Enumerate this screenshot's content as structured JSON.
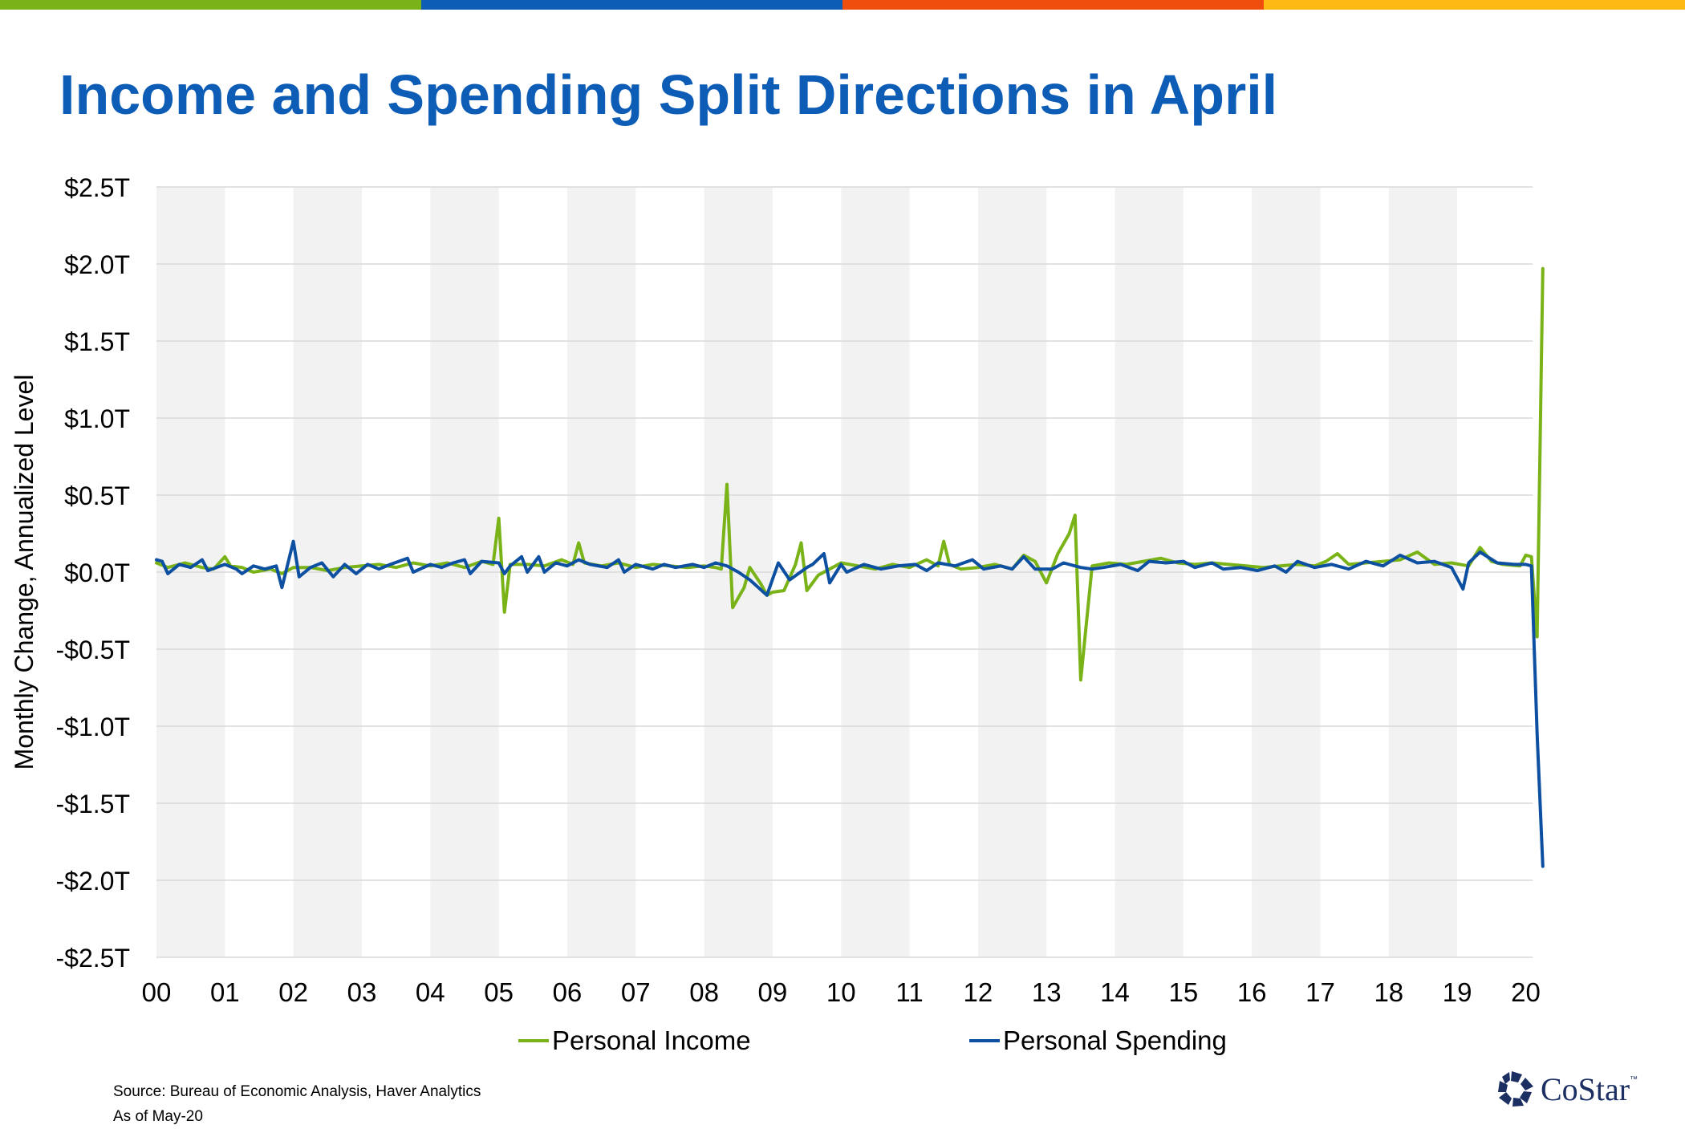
{
  "colors": {
    "top_bar": [
      "#7ab317",
      "#0d5cb6",
      "#f04e0d",
      "#fdb813"
    ],
    "income": "#7ab317",
    "spending": "#0d4fa0",
    "title": "#0d5cb6",
    "band": "#f2f2f2",
    "grid": "#d9d9d9",
    "logo": "#1c2f63"
  },
  "footer": {
    "source": "Source: Bureau of Economic Analysis, Haver Analytics",
    "as_of": "As of May-20",
    "logo_text": "CoStar",
    "logo_tm": "™"
  },
  "chart_data": {
    "type": "line",
    "title": "Income and Spending Split Directions in April",
    "ylabel": "Monthly Change, Annualized Level",
    "xlabel": "",
    "ylim": [
      -2.5,
      2.5
    ],
    "y_ticks": [
      2.5,
      2.0,
      1.5,
      1.0,
      0.5,
      0.0,
      -0.5,
      -1.0,
      -1.5,
      -2.0,
      -2.5
    ],
    "y_tick_labels": [
      "$2.5T",
      "$2.0T",
      "$1.5T",
      "$1.0T",
      "$0.5T",
      "$0.0T",
      "-$0.5T",
      "-$1.0T",
      "-$1.5T",
      "-$2.0T",
      "-$2.5T"
    ],
    "x_tick_labels": [
      "00",
      "01",
      "02",
      "03",
      "04",
      "05",
      "06",
      "07",
      "08",
      "09",
      "10",
      "11",
      "12",
      "13",
      "14",
      "15",
      "16",
      "17",
      "18",
      "19",
      "20"
    ],
    "x_start_year": 2000,
    "shaded_years": [
      "00",
      "02",
      "04",
      "06",
      "08",
      "10",
      "12",
      "14",
      "16",
      "18"
    ],
    "grid": true,
    "legend_position": "bottom",
    "series": [
      {
        "name": "Personal Income",
        "color": "#7ab317",
        "points": [
          [
            "2000-01",
            0.06
          ],
          [
            "2000-03",
            0.03
          ],
          [
            "2000-06",
            0.06
          ],
          [
            "2000-09",
            0.03
          ],
          [
            "2000-11",
            0.02
          ],
          [
            "2001-01",
            0.1
          ],
          [
            "2001-02",
            0.04
          ],
          [
            "2001-04",
            0.03
          ],
          [
            "2001-06",
            0.0
          ],
          [
            "2001-09",
            0.02
          ],
          [
            "2001-11",
            -0.01
          ],
          [
            "2002-01",
            0.03
          ],
          [
            "2002-04",
            0.03
          ],
          [
            "2002-07",
            0.01
          ],
          [
            "2002-10",
            0.03
          ],
          [
            "2003-01",
            0.04
          ],
          [
            "2003-04",
            0.05
          ],
          [
            "2003-07",
            0.03
          ],
          [
            "2003-10",
            0.06
          ],
          [
            "2004-01",
            0.04
          ],
          [
            "2004-04",
            0.06
          ],
          [
            "2004-07",
            0.03
          ],
          [
            "2004-10",
            0.07
          ],
          [
            "2004-12",
            0.05
          ],
          [
            "2005-01",
            0.35
          ],
          [
            "2005-02",
            -0.26
          ],
          [
            "2005-03",
            0.05
          ],
          [
            "2005-06",
            0.05
          ],
          [
            "2005-09",
            0.04
          ],
          [
            "2005-12",
            0.08
          ],
          [
            "2006-02",
            0.05
          ],
          [
            "2006-03",
            0.19
          ],
          [
            "2006-04",
            0.06
          ],
          [
            "2006-07",
            0.04
          ],
          [
            "2006-10",
            0.06
          ],
          [
            "2007-01",
            0.03
          ],
          [
            "2007-04",
            0.05
          ],
          [
            "2007-07",
            0.04
          ],
          [
            "2007-10",
            0.03
          ],
          [
            "2008-01",
            0.04
          ],
          [
            "2008-03",
            0.03
          ],
          [
            "2008-04",
            0.02
          ],
          [
            "2008-05",
            0.57
          ],
          [
            "2008-06",
            -0.23
          ],
          [
            "2008-08",
            -0.1
          ],
          [
            "2008-09",
            0.03
          ],
          [
            "2008-11",
            -0.08
          ],
          [
            "2008-12",
            -0.15
          ],
          [
            "2009-01",
            -0.13
          ],
          [
            "2009-03",
            -0.12
          ],
          [
            "2009-05",
            0.05
          ],
          [
            "2009-06",
            0.19
          ],
          [
            "2009-07",
            -0.12
          ],
          [
            "2009-09",
            -0.02
          ],
          [
            "2009-11",
            0.02
          ],
          [
            "2010-01",
            0.06
          ],
          [
            "2010-04",
            0.04
          ],
          [
            "2010-07",
            0.02
          ],
          [
            "2010-10",
            0.05
          ],
          [
            "2011-01",
            0.03
          ],
          [
            "2011-04",
            0.08
          ],
          [
            "2011-06",
            0.04
          ],
          [
            "2011-07",
            0.2
          ],
          [
            "2011-08",
            0.05
          ],
          [
            "2011-10",
            0.02
          ],
          [
            "2012-01",
            0.03
          ],
          [
            "2012-04",
            0.05
          ],
          [
            "2012-07",
            0.02
          ],
          [
            "2012-09",
            0.11
          ],
          [
            "2012-11",
            0.07
          ],
          [
            "2013-01",
            -0.07
          ],
          [
            "2013-03",
            0.12
          ],
          [
            "2013-05",
            0.25
          ],
          [
            "2013-06",
            0.37
          ],
          [
            "2013-07",
            -0.7
          ],
          [
            "2013-09",
            0.04
          ],
          [
            "2013-12",
            0.06
          ],
          [
            "2014-03",
            0.05
          ],
          [
            "2014-06",
            0.07
          ],
          [
            "2014-09",
            0.09
          ],
          [
            "2014-12",
            0.06
          ],
          [
            "2015-03",
            0.05
          ],
          [
            "2015-06",
            0.06
          ],
          [
            "2015-09",
            0.05
          ],
          [
            "2015-12",
            0.04
          ],
          [
            "2016-03",
            0.03
          ],
          [
            "2016-06",
            0.04
          ],
          [
            "2016-09",
            0.05
          ],
          [
            "2016-12",
            0.04
          ],
          [
            "2017-02",
            0.07
          ],
          [
            "2017-04",
            0.12
          ],
          [
            "2017-06",
            0.05
          ],
          [
            "2017-09",
            0.06
          ],
          [
            "2017-12",
            0.07
          ],
          [
            "2018-03",
            0.08
          ],
          [
            "2018-06",
            0.13
          ],
          [
            "2018-09",
            0.05
          ],
          [
            "2018-12",
            0.06
          ],
          [
            "2019-03",
            0.04
          ],
          [
            "2019-05",
            0.16
          ],
          [
            "2019-07",
            0.07
          ],
          [
            "2019-09",
            0.05
          ],
          [
            "2019-12",
            0.04
          ],
          [
            "2020-01",
            0.11
          ],
          [
            "2020-02",
            0.1
          ],
          [
            "2020-03",
            -0.42
          ],
          [
            "2020-04",
            1.97
          ]
        ]
      },
      {
        "name": "Personal Spending",
        "color": "#0d4fa0",
        "points": [
          [
            "2000-01",
            0.08
          ],
          [
            "2000-02",
            0.07
          ],
          [
            "2000-03",
            -0.01
          ],
          [
            "2000-05",
            0.05
          ],
          [
            "2000-07",
            0.03
          ],
          [
            "2000-09",
            0.08
          ],
          [
            "2000-10",
            0.01
          ],
          [
            "2001-01",
            0.05
          ],
          [
            "2001-03",
            0.02
          ],
          [
            "2001-04",
            -0.01
          ],
          [
            "2001-06",
            0.04
          ],
          [
            "2001-08",
            0.02
          ],
          [
            "2001-10",
            0.04
          ],
          [
            "2001-11",
            -0.1
          ],
          [
            "2002-01",
            0.2
          ],
          [
            "2002-02",
            -0.03
          ],
          [
            "2002-04",
            0.03
          ],
          [
            "2002-06",
            0.06
          ],
          [
            "2002-08",
            -0.03
          ],
          [
            "2002-10",
            0.05
          ],
          [
            "2002-12",
            -0.01
          ],
          [
            "2003-02",
            0.05
          ],
          [
            "2003-04",
            0.02
          ],
          [
            "2003-06",
            0.05
          ],
          [
            "2003-09",
            0.09
          ],
          [
            "2003-10",
            0.0
          ],
          [
            "2004-01",
            0.05
          ],
          [
            "2004-03",
            0.03
          ],
          [
            "2004-05",
            0.06
          ],
          [
            "2004-07",
            0.08
          ],
          [
            "2004-08",
            -0.01
          ],
          [
            "2004-10",
            0.07
          ],
          [
            "2005-01",
            0.06
          ],
          [
            "2005-02",
            -0.01
          ],
          [
            "2005-03",
            0.04
          ],
          [
            "2005-05",
            0.1
          ],
          [
            "2005-06",
            0.0
          ],
          [
            "2005-08",
            0.1
          ],
          [
            "2005-09",
            0.0
          ],
          [
            "2005-11",
            0.06
          ],
          [
            "2006-01",
            0.04
          ],
          [
            "2006-03",
            0.08
          ],
          [
            "2006-05",
            0.05
          ],
          [
            "2006-08",
            0.03
          ],
          [
            "2006-10",
            0.08
          ],
          [
            "2006-11",
            0.0
          ],
          [
            "2007-01",
            0.05
          ],
          [
            "2007-04",
            0.02
          ],
          [
            "2007-06",
            0.05
          ],
          [
            "2007-08",
            0.03
          ],
          [
            "2007-11",
            0.05
          ],
          [
            "2008-01",
            0.03
          ],
          [
            "2008-03",
            0.06
          ],
          [
            "2008-05",
            0.04
          ],
          [
            "2008-07",
            0.0
          ],
          [
            "2008-09",
            -0.05
          ],
          [
            "2008-12",
            -0.15
          ],
          [
            "2009-02",
            0.06
          ],
          [
            "2009-04",
            -0.05
          ],
          [
            "2009-07",
            0.03
          ],
          [
            "2009-08",
            0.05
          ],
          [
            "2009-10",
            0.12
          ],
          [
            "2009-11",
            -0.07
          ],
          [
            "2010-01",
            0.05
          ],
          [
            "2010-02",
            0.0
          ],
          [
            "2010-05",
            0.05
          ],
          [
            "2010-08",
            0.02
          ],
          [
            "2010-11",
            0.04
          ],
          [
            "2011-02",
            0.05
          ],
          [
            "2011-04",
            0.01
          ],
          [
            "2011-06",
            0.06
          ],
          [
            "2011-09",
            0.04
          ],
          [
            "2011-12",
            0.08
          ],
          [
            "2012-02",
            0.02
          ],
          [
            "2012-05",
            0.04
          ],
          [
            "2012-07",
            0.02
          ],
          [
            "2012-09",
            0.1
          ],
          [
            "2012-11",
            0.02
          ],
          [
            "2013-02",
            0.02
          ],
          [
            "2013-04",
            0.06
          ],
          [
            "2013-07",
            0.03
          ],
          [
            "2013-09",
            0.02
          ],
          [
            "2013-11",
            0.03
          ],
          [
            "2014-02",
            0.05
          ],
          [
            "2014-05",
            0.01
          ],
          [
            "2014-07",
            0.07
          ],
          [
            "2014-10",
            0.06
          ],
          [
            "2015-01",
            0.07
          ],
          [
            "2015-03",
            0.03
          ],
          [
            "2015-06",
            0.06
          ],
          [
            "2015-08",
            0.02
          ],
          [
            "2015-11",
            0.03
          ],
          [
            "2016-02",
            0.01
          ],
          [
            "2016-05",
            0.04
          ],
          [
            "2016-07",
            0.0
          ],
          [
            "2016-09",
            0.07
          ],
          [
            "2016-12",
            0.03
          ],
          [
            "2017-03",
            0.05
          ],
          [
            "2017-06",
            0.02
          ],
          [
            "2017-09",
            0.07
          ],
          [
            "2017-12",
            0.04
          ],
          [
            "2018-03",
            0.11
          ],
          [
            "2018-06",
            0.06
          ],
          [
            "2018-09",
            0.07
          ],
          [
            "2018-12",
            0.03
          ],
          [
            "2019-02",
            -0.11
          ],
          [
            "2019-03",
            0.06
          ],
          [
            "2019-05",
            0.13
          ],
          [
            "2019-08",
            0.06
          ],
          [
            "2019-11",
            0.05
          ],
          [
            "2020-01",
            0.05
          ],
          [
            "2020-02",
            0.04
          ],
          [
            "2020-03",
            -1.05
          ],
          [
            "2020-04",
            -1.91
          ]
        ]
      }
    ]
  }
}
